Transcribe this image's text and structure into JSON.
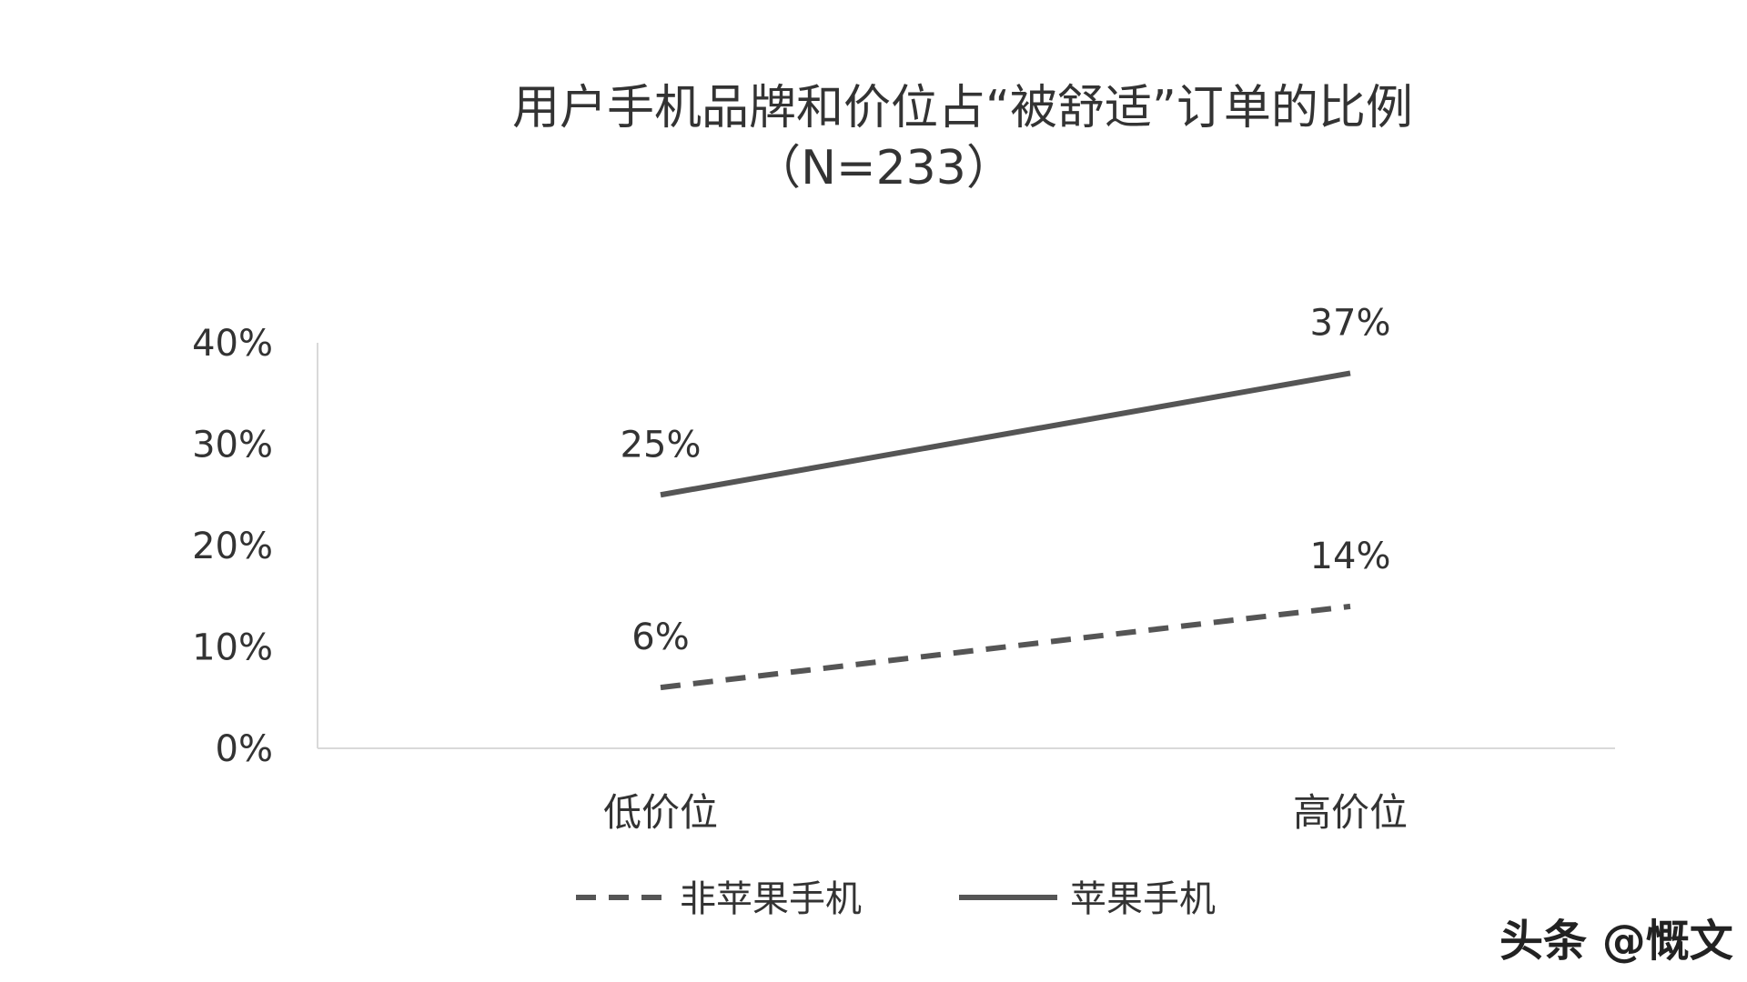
{
  "chart_data": {
    "type": "line",
    "title": "用户手机品牌和价位占“被舒适”订单的比例",
    "subtitle": "（N=233）",
    "categories": [
      "低价位",
      "高价位"
    ],
    "series": [
      {
        "name": "非苹果手机",
        "values": [
          6,
          14
        ],
        "labels": [
          "6%",
          "14%"
        ],
        "style": "dashed",
        "color": "#555555"
      },
      {
        "name": "苹果手机",
        "values": [
          25,
          37
        ],
        "labels": [
          "25%",
          "37%"
        ],
        "style": "solid",
        "color": "#555555"
      }
    ],
    "ylim": [
      0,
      40
    ],
    "yticks": [
      "0%",
      "10%",
      "20%",
      "30%",
      "40%"
    ],
    "grid": false,
    "legend": "bottom"
  },
  "watermark": "头条 @慨文"
}
